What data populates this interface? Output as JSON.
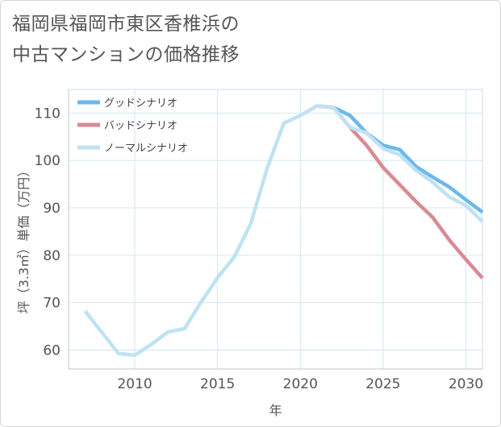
{
  "title_line1": "福岡県福岡市東区香椎浜の",
  "title_line2": "中古マンションの価格推移",
  "chart_data": {
    "type": "line",
    "xlabel": "年",
    "ylabel": "坪（3.3㎡）単価（万円）",
    "xlim": [
      2006,
      2031
    ],
    "ylim": [
      56,
      115
    ],
    "xticks": [
      2010,
      2015,
      2020,
      2025,
      2030
    ],
    "yticks": [
      60,
      70,
      80,
      90,
      100,
      110
    ],
    "grid": true,
    "legend_position": "top-left",
    "series": [
      {
        "name": "グッドシナリオ",
        "color": "#6cb8ec",
        "x": [
          2021,
          2022,
          2023,
          2024,
          2025,
          2026,
          2027,
          2028,
          2029,
          2030,
          2031
        ],
        "y": [
          111.5,
          111.2,
          109.5,
          105.8,
          103.2,
          102.3,
          98.7,
          96.5,
          94.4,
          91.7,
          89.1
        ]
      },
      {
        "name": "バッドシナリオ",
        "color": "#d98a93",
        "x": [
          2021,
          2022,
          2023,
          2024,
          2025,
          2026,
          2027,
          2028,
          2029,
          2030,
          2031
        ],
        "y": [
          111.5,
          111.2,
          107.0,
          103.2,
          98.5,
          94.9,
          91.3,
          88.0,
          83.2,
          79.1,
          75.2
        ]
      },
      {
        "name": "ノーマルシナリオ",
        "color": "#bfe2f2",
        "x": [
          2007,
          2008,
          2009,
          2010,
          2011,
          2012,
          2013,
          2014,
          2015,
          2016,
          2017,
          2018,
          2019,
          2020,
          2021,
          2022,
          2023,
          2024,
          2025,
          2026,
          2027,
          2028,
          2029,
          2030,
          2031
        ],
        "y": [
          68.2,
          63.8,
          59.3,
          58.9,
          61.2,
          63.8,
          64.5,
          70.1,
          75.3,
          79.6,
          86.6,
          98.4,
          107.9,
          109.5,
          111.5,
          111.2,
          107.0,
          105.8,
          102.5,
          101.2,
          97.9,
          95.4,
          92.3,
          90.5,
          87.1
        ]
      }
    ]
  }
}
